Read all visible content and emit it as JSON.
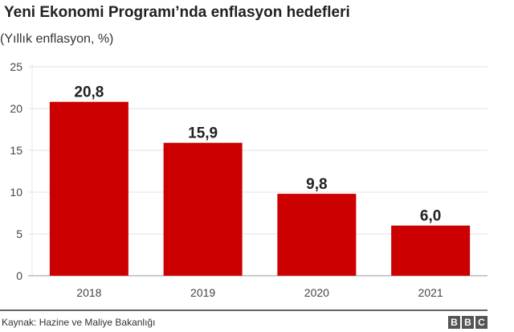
{
  "chart_data": {
    "type": "bar",
    "title": "Yeni Ekonomi Programı’nda enflasyon hedefleri",
    "subtitle": "(Yıllık enflasyon, %)",
    "categories": [
      "2018",
      "2019",
      "2020",
      "2021"
    ],
    "values": [
      20.8,
      15.9,
      9.8,
      6.0
    ],
    "data_labels": [
      "20,8",
      "15,9",
      "9,8",
      "6,0"
    ],
    "ylim": [
      0,
      25
    ],
    "yticks": [
      0,
      5,
      10,
      15,
      20,
      25
    ],
    "grid": true,
    "bar_color": "#cc0000"
  },
  "footer": {
    "source": "Kaynak: Hazine ve Maliye Bakanlığı",
    "logo": [
      "B",
      "B",
      "C"
    ]
  }
}
